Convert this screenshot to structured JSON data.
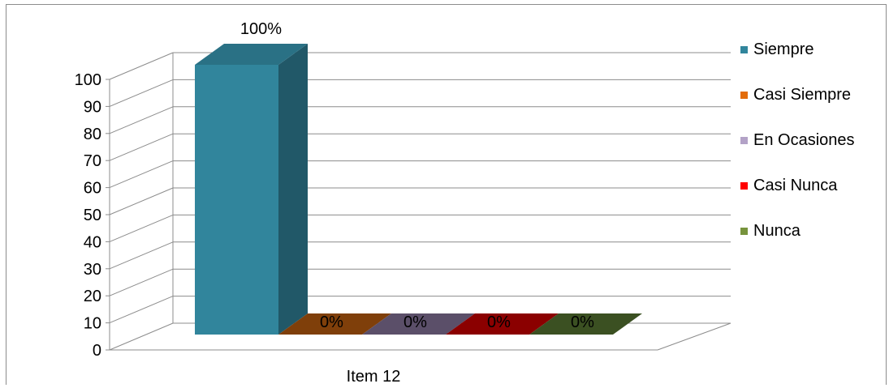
{
  "chart_data": {
    "type": "bar",
    "categories": [
      "Item 12"
    ],
    "series": [
      {
        "name": "Siempre",
        "values": [
          100
        ],
        "label": "100%",
        "color": "#31859C",
        "side_color": "#215868",
        "top_color": "#2A7185"
      },
      {
        "name": "Casi Siempre",
        "values": [
          0
        ],
        "label": "0%",
        "color": "#E36C09",
        "side_color": "#974706",
        "top_color": "#7F3F0A"
      },
      {
        "name": "En Ocasiones",
        "values": [
          0
        ],
        "label": "0%",
        "color": "#B3A2C7",
        "side_color": "#5F4F6F",
        "top_color": "#5B4F69"
      },
      {
        "name": "Casi Nunca",
        "values": [
          0
        ],
        "label": "0%",
        "color": "#FF0000",
        "side_color": "#800000",
        "top_color": "#8B0000"
      },
      {
        "name": "Nunca",
        "values": [
          0
        ],
        "label": "0%",
        "color": "#77933C",
        "side_color": "#3B4E1F",
        "top_color": "#3B5022"
      }
    ],
    "y_ticks": [
      "0",
      "10",
      "20",
      "30",
      "40",
      "50",
      "60",
      "70",
      "80",
      "90",
      "100"
    ],
    "ylim": [
      0,
      100
    ],
    "grid": true,
    "legend": "right",
    "projection": "3d-column"
  },
  "x_axis": {
    "category_label": "Item 12"
  }
}
